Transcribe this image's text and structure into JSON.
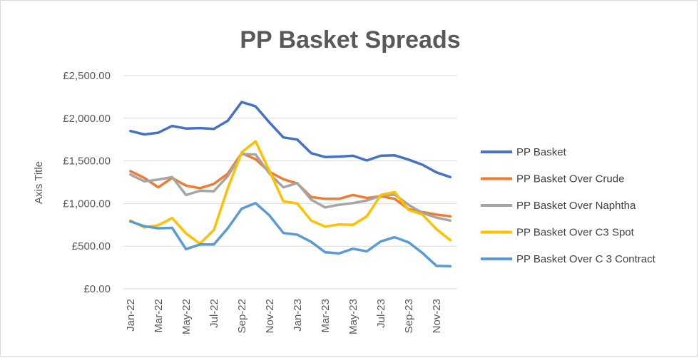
{
  "chart_data": {
    "type": "line",
    "title": "PP Basket Spreads",
    "ylabel": "Axis Title",
    "xlabel": "",
    "ylim": [
      0,
      2500
    ],
    "ytick_values": [
      0,
      500,
      1000,
      1500,
      2000,
      2500
    ],
    "ytick_labels": [
      "£0.00",
      "£500.00",
      "£1,000.00",
      "£1,500.00",
      "£2,000.00",
      "£2,500.00"
    ],
    "x": [
      "Jan-22",
      "Feb-22",
      "Mar-22",
      "Apr-22",
      "May-22",
      "Jun-22",
      "Jul-22",
      "Aug-22",
      "Sep-22",
      "Oct-22",
      "Nov-22",
      "Dec-22",
      "Jan-23",
      "Feb-23",
      "Mar-23",
      "Apr-23",
      "May-23",
      "Jun-23",
      "Jul-23",
      "Aug-23",
      "Sep-23",
      "Oct-23",
      "Nov-23",
      "Dec-23"
    ],
    "xtick_labels": [
      "Jan-22",
      "Mar-22",
      "May-22",
      "Jul-22",
      "Sep-22",
      "Nov-22",
      "Jan-23",
      "Mar-23",
      "May-23",
      "Jul-23",
      "Sep-23",
      "Nov-23"
    ],
    "grid": true,
    "legend_position": "right",
    "series": [
      {
        "name": "PP Basket",
        "color": "#4472c4",
        "values": [
          1850,
          1810,
          1830,
          1910,
          1880,
          1885,
          1875,
          1970,
          2190,
          2140,
          1950,
          1775,
          1750,
          1590,
          1545,
          1550,
          1560,
          1505,
          1560,
          1565,
          1515,
          1455,
          1365,
          1310
        ]
      },
      {
        "name": "PP Basket Over Crude",
        "color": "#ed7d31",
        "values": [
          1380,
          1300,
          1190,
          1300,
          1210,
          1180,
          1230,
          1350,
          1590,
          1520,
          1370,
          1285,
          1235,
          1075,
          1055,
          1055,
          1100,
          1065,
          1085,
          1055,
          935,
          900,
          870,
          850
        ]
      },
      {
        "name": "PP Basket Over Naphtha",
        "color": "#a5a5a5",
        "values": [
          1340,
          1260,
          1280,
          1310,
          1100,
          1150,
          1145,
          1320,
          1580,
          1575,
          1350,
          1190,
          1240,
          1045,
          955,
          985,
          1005,
          1035,
          1090,
          1105,
          985,
          890,
          835,
          800
        ]
      },
      {
        "name": "PP Basket Over C3 Spot",
        "color": "#ffc000",
        "values": [
          800,
          720,
          745,
          830,
          650,
          530,
          690,
          1180,
          1600,
          1730,
          1380,
          1025,
          1000,
          800,
          730,
          755,
          750,
          850,
          1100,
          1135,
          925,
          870,
          700,
          570
        ]
      },
      {
        "name": "PP Basket Over C 3 Contract",
        "color": "#5b9bd5",
        "values": [
          790,
          735,
          710,
          715,
          465,
          520,
          520,
          710,
          940,
          1005,
          860,
          655,
          635,
          550,
          430,
          415,
          470,
          440,
          555,
          605,
          545,
          420,
          270,
          265
        ]
      }
    ]
  }
}
